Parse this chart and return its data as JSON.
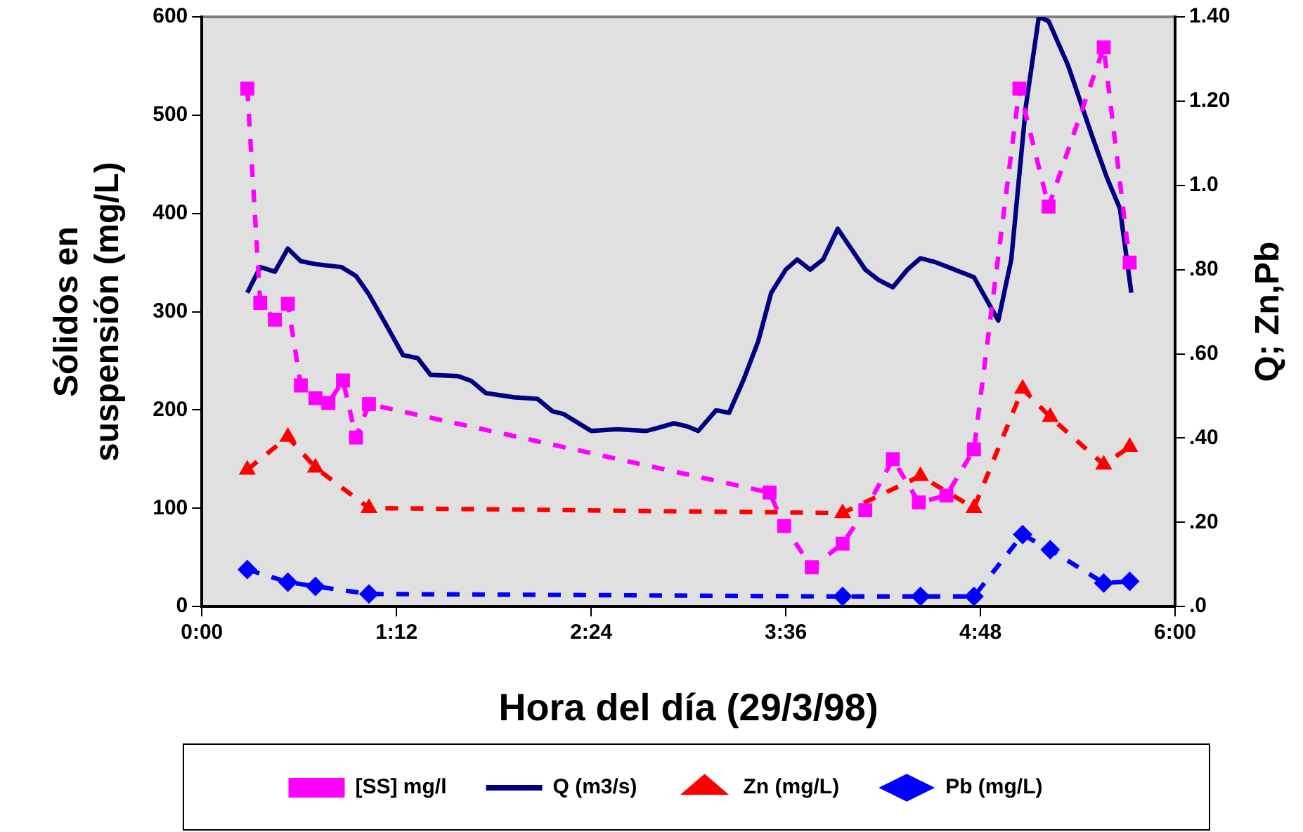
{
  "chart_data": {
    "type": "line",
    "xlabel": "Hora del día (29/3/98)",
    "ylabel": "Sólidos en suspensión (mg/L)",
    "y2label": "Q; Zn,Pb",
    "xlim": [
      0,
      6
    ],
    "xticks": [
      {
        "value": 0,
        "label": "0:00"
      },
      {
        "value": 1.2,
        "label": "1:12"
      },
      {
        "value": 2.4,
        "label": "2:24"
      },
      {
        "value": 3.6,
        "label": "3:36"
      },
      {
        "value": 4.8,
        "label": "4:48"
      },
      {
        "value": 6,
        "label": "6:00"
      }
    ],
    "ylim": [
      0,
      600
    ],
    "yticks": [
      0,
      100,
      200,
      300,
      400,
      500,
      600
    ],
    "y2lim": [
      0,
      1.4
    ],
    "y2ticks": [
      {
        "value": 0,
        "label": ".0"
      },
      {
        "value": 0.2,
        "label": ".20"
      },
      {
        "value": 0.4,
        "label": ".40"
      },
      {
        "value": 0.6,
        "label": ".60"
      },
      {
        "value": 0.8,
        "label": ".80"
      },
      {
        "value": 1.0,
        "label": "1.0"
      },
      {
        "value": 1.2,
        "label": "1.20"
      },
      {
        "value": 1.4,
        "label": "1.40"
      }
    ],
    "grid": false,
    "legend": "bottom",
    "series": [
      {
        "name": "[SS] mg/l",
        "color": "#ff00ff",
        "marker": "square",
        "line_style": "dashed",
        "x": [
          0.28,
          0.36,
          0.45,
          0.53,
          0.61,
          0.7,
          0.78,
          0.87,
          0.95,
          1.03,
          3.5,
          3.59,
          3.76,
          3.95,
          4.09,
          4.26,
          4.42,
          4.59,
          4.76,
          5.04,
          5.22,
          5.56,
          5.72
        ],
        "values": [
          527,
          309,
          292,
          308,
          225,
          212,
          207,
          230,
          172,
          206,
          116,
          82,
          40,
          64,
          98,
          150,
          106,
          113,
          160,
          527,
          407,
          569,
          350
        ]
      },
      {
        "name": "Q (m3/s)",
        "color": "#000080",
        "marker": "none",
        "line_style": "solid",
        "axis": "y2",
        "x": [
          0.28,
          0.36,
          0.45,
          0.53,
          0.61,
          0.7,
          0.86,
          0.95,
          1.03,
          1.13,
          1.24,
          1.33,
          1.41,
          1.58,
          1.66,
          1.75,
          1.92,
          2.07,
          2.16,
          2.23,
          2.4,
          2.56,
          2.74,
          2.82,
          2.91,
          2.99,
          3.06,
          3.17,
          3.25,
          3.34,
          3.43,
          3.51,
          3.6,
          3.67,
          3.75,
          3.83,
          3.92,
          4.09,
          4.17,
          4.26,
          4.35,
          4.43,
          4.52,
          4.6,
          4.76,
          4.91,
          4.99,
          5.08,
          5.16,
          5.22,
          5.34,
          5.49,
          5.58,
          5.66,
          5.73
        ],
        "values": [
          0.745,
          0.806,
          0.795,
          0.85,
          0.82,
          0.813,
          0.806,
          0.785,
          0.741,
          0.673,
          0.597,
          0.59,
          0.55,
          0.547,
          0.536,
          0.507,
          0.497,
          0.493,
          0.464,
          0.457,
          0.417,
          0.421,
          0.417,
          0.425,
          0.435,
          0.428,
          0.417,
          0.466,
          0.46,
          0.539,
          0.63,
          0.745,
          0.8,
          0.824,
          0.8,
          0.824,
          0.897,
          0.8,
          0.776,
          0.758,
          0.8,
          0.827,
          0.818,
          0.806,
          0.782,
          0.679,
          0.824,
          1.188,
          1.4,
          1.39,
          1.285,
          1.115,
          1.018,
          0.945,
          0.745
        ]
      },
      {
        "name": "Zn (mg/L)",
        "color": "#ff0000",
        "marker": "triangle",
        "line_style": "dashed",
        "axis": "y2",
        "x": [
          0.28,
          0.53,
          0.7,
          1.03,
          3.95,
          4.43,
          4.76,
          5.06,
          5.23,
          5.56,
          5.72
        ],
        "values": [
          0.325,
          0.403,
          0.33,
          0.234,
          0.222,
          0.31,
          0.234,
          0.517,
          0.45,
          0.337,
          0.379
        ]
      },
      {
        "name": "Pb (mg/L)",
        "color": "#0000ff",
        "marker": "diamond",
        "line_style": "dashed",
        "axis": "y2",
        "x": [
          0.28,
          0.53,
          0.7,
          1.03,
          3.95,
          4.43,
          4.76,
          5.06,
          5.23,
          5.56,
          5.72
        ],
        "values": [
          0.088,
          0.058,
          0.048,
          0.03,
          0.024,
          0.024,
          0.024,
          0.171,
          0.135,
          0.056,
          0.06
        ]
      }
    ]
  }
}
